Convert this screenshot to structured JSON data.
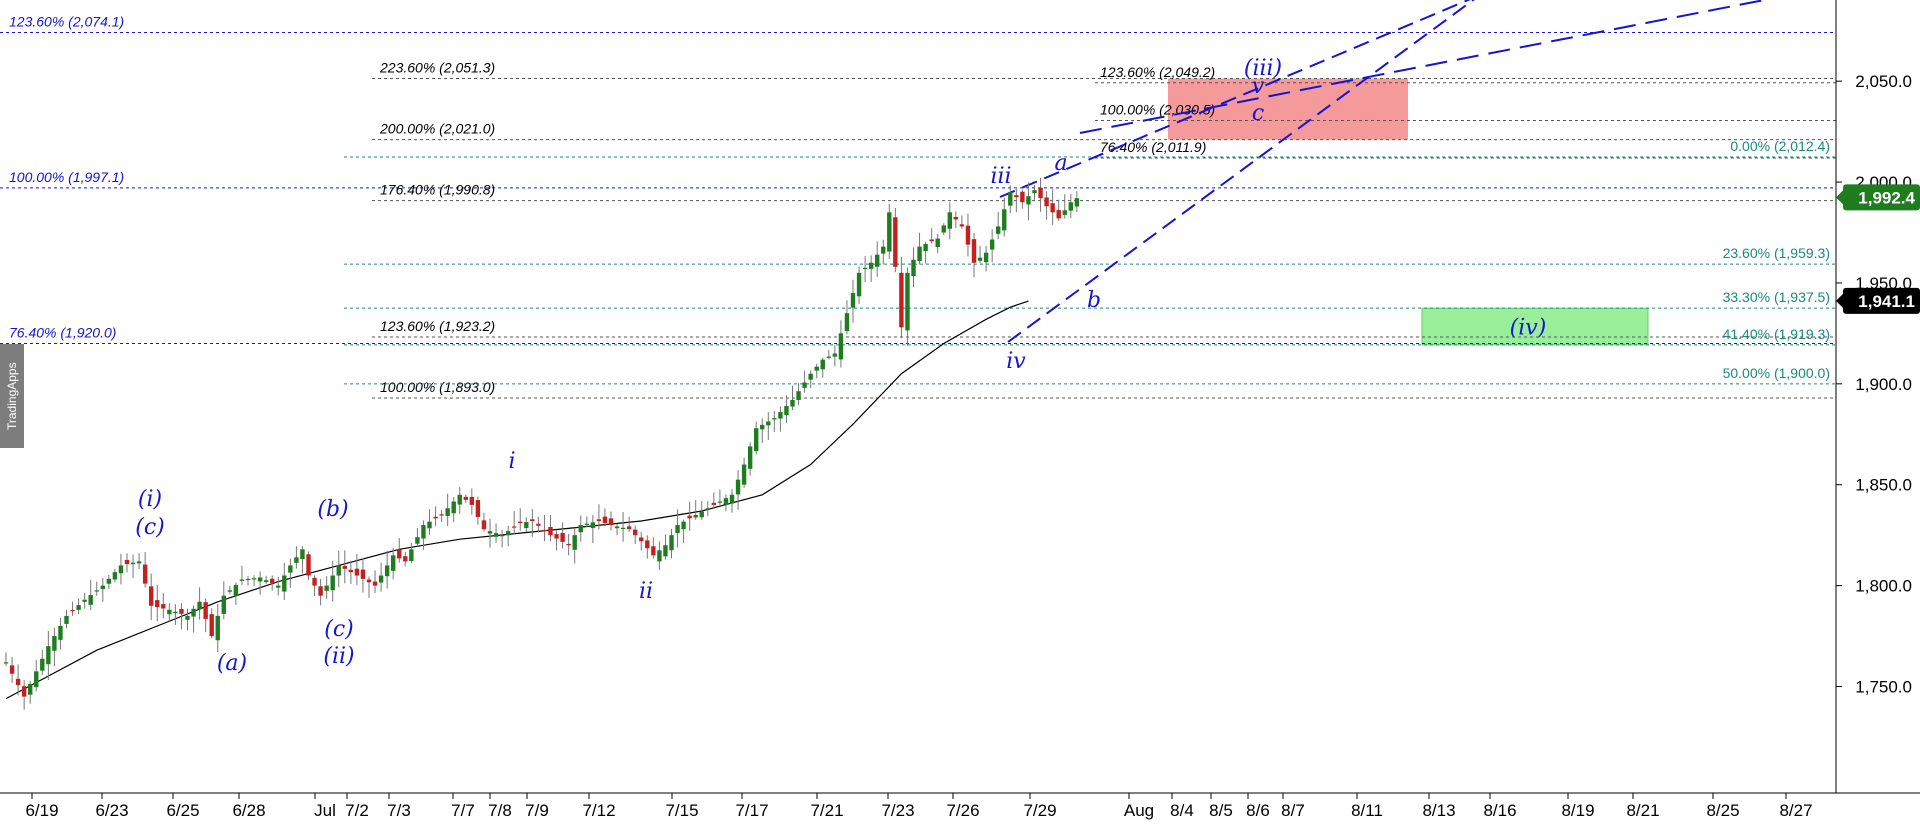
{
  "watermark": "TradingApps",
  "colors": {
    "bull": "#1f7d1f",
    "bear": "#c42020",
    "wave": "#1414d2",
    "fib_blue": "#1414d2",
    "fib_black": "#000000",
    "fib_teal": "#1a8a7a",
    "ma": "#000000",
    "target_red": "#f59a9a",
    "target_green": "#99ee99",
    "price_badge": "#1f7d1f",
    "ma_badge": "#000000"
  },
  "chart_data": {
    "type": "candlestick",
    "title": "",
    "ylim": [
      1700,
      2090
    ],
    "y_ticks": [
      "1,750.0",
      "1,800.0",
      "1,850.0",
      "1,900.0",
      "1,950.0",
      "2,000.0",
      "2,050.0"
    ],
    "y_tick_values": [
      1750,
      1800,
      1850,
      1900,
      1950,
      2000,
      2050
    ],
    "x_ticks": [
      "6/19",
      "6/23",
      "6/25",
      "6/28",
      "Jul",
      "7/2",
      "7/3",
      "7/7",
      "7/8",
      "7/9",
      "7/12",
      "7/15",
      "7/17",
      "7/21",
      "7/23",
      "7/26",
      "7/29",
      "Aug",
      "8/4",
      "8/5",
      "8/6",
      "8/7",
      "8/11",
      "8/13",
      "8/16",
      "8/19",
      "8/21",
      "8/25",
      "8/27"
    ],
    "price_key_path": [
      [
        0,
        1762
      ],
      [
        3,
        1745
      ],
      [
        7,
        1770
      ],
      [
        10,
        1785
      ],
      [
        13,
        1793
      ],
      [
        16,
        1800
      ],
      [
        19,
        1810
      ],
      [
        22,
        1812
      ],
      [
        24,
        1790
      ],
      [
        27,
        1788
      ],
      [
        30,
        1785
      ],
      [
        32,
        1792
      ],
      [
        34,
        1775
      ],
      [
        36,
        1795
      ],
      [
        39,
        1803
      ],
      [
        42,
        1804
      ],
      [
        45,
        1800
      ],
      [
        47,
        1810
      ],
      [
        49,
        1818
      ],
      [
        50,
        1805
      ],
      [
        52,
        1795
      ],
      [
        55,
        1810
      ],
      [
        58,
        1805
      ],
      [
        61,
        1800
      ],
      [
        64,
        1815
      ],
      [
        66,
        1812
      ],
      [
        69,
        1830
      ],
      [
        72,
        1835
      ],
      [
        75,
        1845
      ],
      [
        77,
        1840
      ],
      [
        79,
        1828
      ],
      [
        82,
        1825
      ],
      [
        85,
        1831
      ],
      [
        87,
        1832
      ],
      [
        90,
        1825
      ],
      [
        93,
        1820
      ],
      [
        95,
        1830
      ],
      [
        98,
        1832
      ],
      [
        100,
        1830
      ],
      [
        103,
        1828
      ],
      [
        105,
        1822
      ],
      [
        107,
        1815
      ],
      [
        109,
        1820
      ],
      [
        111,
        1830
      ],
      [
        114,
        1835
      ],
      [
        117,
        1840
      ],
      [
        120,
        1845
      ],
      [
        122,
        1860
      ],
      [
        124,
        1878
      ],
      [
        127,
        1883
      ],
      [
        130,
        1892
      ],
      [
        133,
        1905
      ],
      [
        135,
        1912
      ],
      [
        137,
        1915
      ],
      [
        139,
        1935
      ],
      [
        141,
        1955
      ],
      [
        143,
        1960
      ],
      [
        145,
        1968
      ],
      [
        146,
        1985
      ],
      [
        147,
        1958
      ],
      [
        148,
        1928
      ],
      [
        149,
        1955
      ],
      [
        151,
        1968
      ],
      [
        154,
        1972
      ],
      [
        156,
        1985
      ],
      [
        158,
        1978
      ],
      [
        160,
        1960
      ],
      [
        162,
        1965
      ],
      [
        164,
        1978
      ],
      [
        166,
        1995
      ],
      [
        168,
        1990
      ],
      [
        170,
        1996
      ],
      [
        172,
        1988
      ],
      [
        174,
        1982
      ],
      [
        176,
        1990
      ],
      [
        177,
        1992
      ]
    ],
    "moving_average": [
      [
        0,
        1744
      ],
      [
        5,
        1752
      ],
      [
        15,
        1768
      ],
      [
        25,
        1780
      ],
      [
        35,
        1792
      ],
      [
        45,
        1802
      ],
      [
        55,
        1810
      ],
      [
        65,
        1818
      ],
      [
        75,
        1823
      ],
      [
        85,
        1826
      ],
      [
        95,
        1829
      ],
      [
        105,
        1832
      ],
      [
        115,
        1837
      ],
      [
        125,
        1845
      ],
      [
        133,
        1860
      ],
      [
        140,
        1880
      ],
      [
        148,
        1905
      ],
      [
        155,
        1920
      ],
      [
        162,
        1932
      ],
      [
        166,
        1938
      ],
      [
        169,
        1941
      ]
    ],
    "last_price": "1,992.4",
    "ma_value": "1,941.1",
    "fib_levels_blue": [
      {
        "label": "123.60% (2,074.1)",
        "value": 2074.1
      },
      {
        "label": "100.00% (1,997.1)",
        "value": 1997.1
      },
      {
        "label": "76.40% (1,920.0)",
        "value": 1920.0
      }
    ],
    "fib_levels_black": [
      {
        "label": "223.60% (2,051.3)",
        "value": 2051.3
      },
      {
        "label": "200.00% (2,021.0)",
        "value": 2021.0
      },
      {
        "label": "176.40% (1,990.8)",
        "value": 1990.8
      },
      {
        "label": "123.60% (1,923.2)",
        "value": 1923.2
      },
      {
        "label": "100.00% (1,893.0)",
        "value": 1893.0
      }
    ],
    "fib_levels_small": [
      {
        "label": "123.60% (2,049.2)",
        "value": 2049.2
      },
      {
        "label": "100.00% (2,030.5)",
        "value": 2030.5
      },
      {
        "label": "76.40% (2,011.9)",
        "value": 2011.9
      }
    ],
    "fib_levels_teal": [
      {
        "label": "0.00% (2,012.4)",
        "value": 2012.4
      },
      {
        "label": "23.60% (1,959.3)",
        "value": 1959.3
      },
      {
        "label": "33.30% (1,937.5)",
        "value": 1937.5
      },
      {
        "label": "41.40% (1,919.3)",
        "value": 1919.3
      },
      {
        "label": "50.00% (1,900.0)",
        "value": 1900.0
      }
    ],
    "target_zones": [
      {
        "name": "wave (iii) target",
        "from": 2021.0,
        "to": 2051.3,
        "color": "#f59a9a"
      },
      {
        "name": "wave (iv) target",
        "from": 1919.3,
        "to": 1937.5,
        "color": "#99ee99",
        "label": "(iv)"
      }
    ],
    "wave_labels": [
      "(i)",
      "(c)",
      "(a)",
      "(b)",
      "(c)",
      "(ii)",
      "i",
      "ii",
      "iii",
      "iv",
      "a",
      "b",
      "c",
      "v",
      "(iii)",
      "c",
      "(iv)"
    ]
  }
}
